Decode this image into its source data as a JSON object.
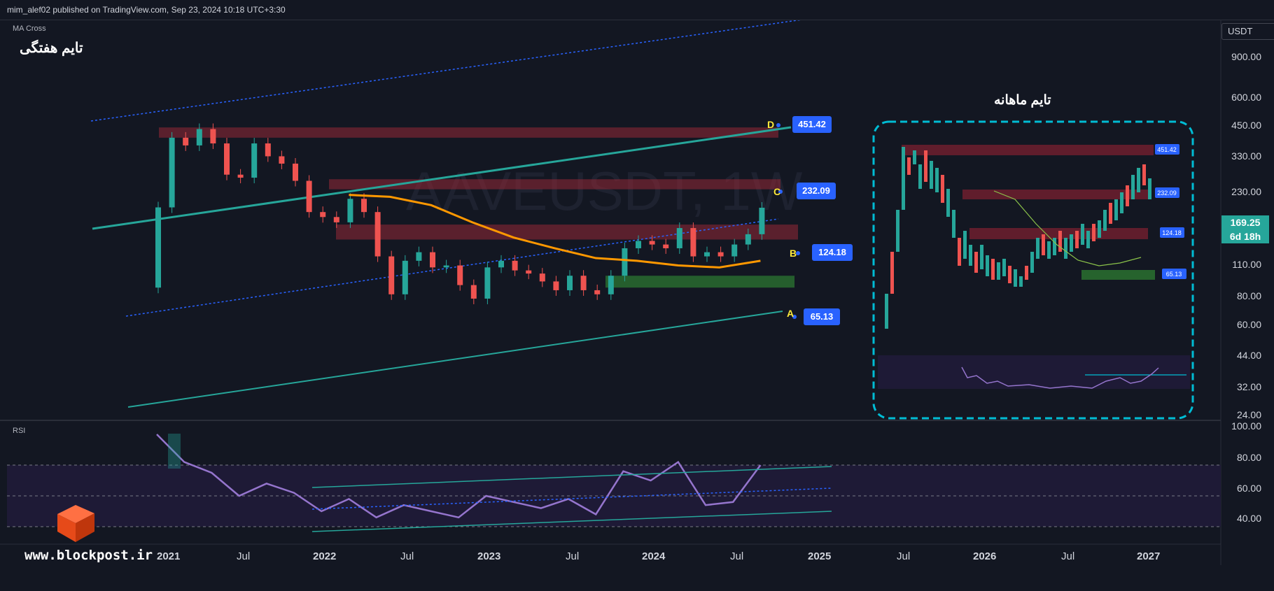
{
  "header": {
    "publisher_text": "mim_alef02 published on TradingView.com, Sep 23, 2024 10:18 UTC+3:30"
  },
  "panes": {
    "study_label": "MA Cross",
    "rsi_label": "RSI"
  },
  "annotations": {
    "weekly_title": "تایم هفتگی",
    "monthly_title": "تایم ماهانه"
  },
  "watermark": "www.blockpost.ir",
  "price_axis": {
    "currency": "USDT",
    "ticks": [
      "900.00",
      "600.00",
      "450.00",
      "330.00",
      "230.00",
      "160.00",
      "110.00",
      "80.00",
      "60.00",
      "44.00",
      "32.00",
      "24.00"
    ],
    "current_price": "169.25",
    "countdown": "6d 18h"
  },
  "rsi_axis": {
    "ticks": [
      "100.00",
      "80.00",
      "60.00",
      "40.00"
    ]
  },
  "time_axis": {
    "labels": [
      "2021",
      "Jul",
      "2022",
      "Jul",
      "2023",
      "Jul",
      "2024",
      "Jul",
      "2025",
      "Jul",
      "2026",
      "Jul",
      "2027"
    ]
  },
  "levels": [
    {
      "zone": "D",
      "value": "451.42"
    },
    {
      "zone": "C",
      "value": "232.09"
    },
    {
      "zone": "B",
      "value": "124.18"
    },
    {
      "zone": "A",
      "value": "65.13"
    }
  ],
  "colors": {
    "background": "#131722",
    "up": "#26a69a",
    "down": "#ef5350",
    "ma": "#ff9800",
    "rsi": "#9575cd",
    "resist_zone": "#7b2030",
    "support_zone": "#2e7d32",
    "label": "#2962ff",
    "inset_border": "#00bcd4"
  },
  "chart_data": {
    "type": "candlestick",
    "symbol_watermark": "AAVEUSDT, 1W",
    "y_scale": "log",
    "ylim": [
      24,
      900
    ],
    "x_range": [
      "2021-01",
      "2027-02"
    ],
    "weekly_closes": [
      {
        "x": "2020-12",
        "y": 60
      },
      {
        "x": "2021-01",
        "y": 170
      },
      {
        "x": "2021-02",
        "y": 420
      },
      {
        "x": "2021-03",
        "y": 380
      },
      {
        "x": "2021-04",
        "y": 470
      },
      {
        "x": "2021-05",
        "y": 390
      },
      {
        "x": "2021-06",
        "y": 260
      },
      {
        "x": "2021-07",
        "y": 250
      },
      {
        "x": "2021-08",
        "y": 390
      },
      {
        "x": "2021-09",
        "y": 330
      },
      {
        "x": "2021-10",
        "y": 300
      },
      {
        "x": "2021-11",
        "y": 240
      },
      {
        "x": "2021-12",
        "y": 160
      },
      {
        "x": "2022-01",
        "y": 150
      },
      {
        "x": "2022-02",
        "y": 140
      },
      {
        "x": "2022-03",
        "y": 190
      },
      {
        "x": "2022-04",
        "y": 160
      },
      {
        "x": "2022-05",
        "y": 90
      },
      {
        "x": "2022-06",
        "y": 55
      },
      {
        "x": "2022-07",
        "y": 85
      },
      {
        "x": "2022-08",
        "y": 95
      },
      {
        "x": "2022-09",
        "y": 78
      },
      {
        "x": "2022-10",
        "y": 80
      },
      {
        "x": "2022-11",
        "y": 62
      },
      {
        "x": "2022-12",
        "y": 52
      },
      {
        "x": "2023-01",
        "y": 78
      },
      {
        "x": "2023-02",
        "y": 85
      },
      {
        "x": "2023-03",
        "y": 75
      },
      {
        "x": "2023-04",
        "y": 72
      },
      {
        "x": "2023-05",
        "y": 65
      },
      {
        "x": "2023-06",
        "y": 58
      },
      {
        "x": "2023-07",
        "y": 70
      },
      {
        "x": "2023-08",
        "y": 58
      },
      {
        "x": "2023-09",
        "y": 55
      },
      {
        "x": "2023-10",
        "y": 70
      },
      {
        "x": "2023-11",
        "y": 100
      },
      {
        "x": "2023-12",
        "y": 110
      },
      {
        "x": "2024-01",
        "y": 105
      },
      {
        "x": "2024-02",
        "y": 100
      },
      {
        "x": "2024-03",
        "y": 130
      },
      {
        "x": "2024-04",
        "y": 90
      },
      {
        "x": "2024-05",
        "y": 95
      },
      {
        "x": "2024-06",
        "y": 90
      },
      {
        "x": "2024-07",
        "y": 105
      },
      {
        "x": "2024-08",
        "y": 120
      },
      {
        "x": "2024-09",
        "y": 169.25
      }
    ],
    "moving_average": [
      {
        "x": "2022-03",
        "y": 200
      },
      {
        "x": "2022-06",
        "y": 195
      },
      {
        "x": "2022-09",
        "y": 175
      },
      {
        "x": "2022-12",
        "y": 140
      },
      {
        "x": "2023-03",
        "y": 115
      },
      {
        "x": "2023-06",
        "y": 100
      },
      {
        "x": "2023-09",
        "y": 88
      },
      {
        "x": "2023-12",
        "y": 85
      },
      {
        "x": "2024-03",
        "y": 80
      },
      {
        "x": "2024-06",
        "y": 78
      },
      {
        "x": "2024-09",
        "y": 85
      }
    ],
    "rsi": {
      "ylim": [
        30,
        100
      ],
      "bands": [
        70,
        50,
        30
      ],
      "values": [
        {
          "x": "2021-01",
          "y": 90
        },
        {
          "x": "2021-03",
          "y": 72
        },
        {
          "x": "2021-05",
          "y": 65
        },
        {
          "x": "2021-07",
          "y": 50
        },
        {
          "x": "2021-09",
          "y": 58
        },
        {
          "x": "2021-11",
          "y": 52
        },
        {
          "x": "2022-01",
          "y": 40
        },
        {
          "x": "2022-03",
          "y": 48
        },
        {
          "x": "2022-05",
          "y": 36
        },
        {
          "x": "2022-07",
          "y": 44
        },
        {
          "x": "2022-09",
          "y": 40
        },
        {
          "x": "2022-11",
          "y": 36
        },
        {
          "x": "2023-01",
          "y": 50
        },
        {
          "x": "2023-03",
          "y": 46
        },
        {
          "x": "2023-05",
          "y": 42
        },
        {
          "x": "2023-07",
          "y": 48
        },
        {
          "x": "2023-09",
          "y": 38
        },
        {
          "x": "2023-11",
          "y": 66
        },
        {
          "x": "2024-01",
          "y": 60
        },
        {
          "x": "2024-03",
          "y": 72
        },
        {
          "x": "2024-05",
          "y": 44
        },
        {
          "x": "2024-07",
          "y": 46
        },
        {
          "x": "2024-09",
          "y": 70
        }
      ]
    },
    "zones": [
      {
        "label": "D",
        "type": "resistance",
        "range": [
          420,
          480
        ]
      },
      {
        "label": "C",
        "type": "resistance",
        "range": [
          215,
          245
        ]
      },
      {
        "label": "B",
        "type": "resistance",
        "range": [
          112,
          136
        ]
      },
      {
        "label": "A",
        "type": "support",
        "range": [
          60,
          70
        ]
      }
    ]
  }
}
